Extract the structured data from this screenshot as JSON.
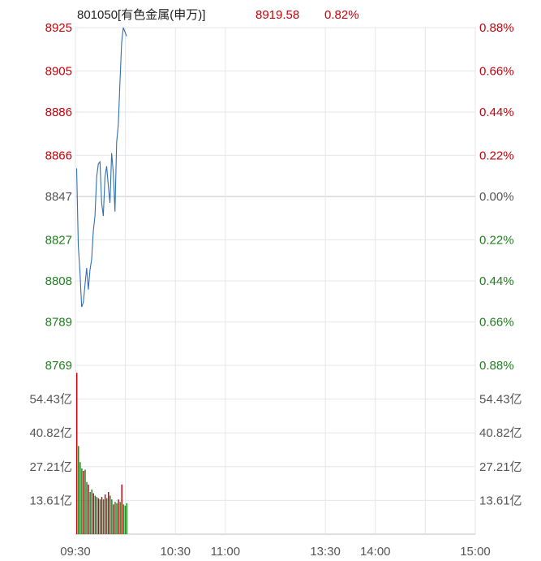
{
  "header": {
    "code_name": "801050[有色金属(申万)]",
    "price": "8919.58",
    "change_pct": "0.82%"
  },
  "colors": {
    "up": "#c8000a",
    "down": "#1e7f1e",
    "neutral": "#555555",
    "price_line": "#2f6fb0",
    "grid": "#e6e6e6",
    "baseline": "#cfcfcf"
  },
  "chart_data": {
    "type": "line",
    "base_price": 8847,
    "price_axis": {
      "min": 8769,
      "max": 8925,
      "left_ticks": [
        "8925",
        "8905",
        "8886",
        "8866",
        "8847",
        "8827",
        "8808",
        "8789",
        "8769"
      ],
      "right_ticks": [
        "0.88%",
        "0.66%",
        "0.44%",
        "0.22%",
        "0.00%",
        "0.22%",
        "0.44%",
        "0.66%",
        "0.88%"
      ],
      "tick_values": [
        8925,
        8905,
        8886,
        8866,
        8847,
        8827,
        8808,
        8789,
        8769
      ]
    },
    "volume_axis": {
      "unit": "亿",
      "max": 68.0,
      "left_ticks": [
        "54.43亿",
        "40.82亿",
        "27.21亿",
        "13.61亿"
      ],
      "right_ticks": [
        "54.43亿",
        "40.82亿",
        "27.21亿",
        "13.61亿"
      ],
      "tick_values": [
        54.43,
        40.82,
        27.21,
        13.61
      ]
    },
    "time_axis": {
      "total_minutes": 240,
      "labels": [
        {
          "text": "09:30",
          "minute": 0
        },
        {
          "text": "10:30",
          "minute": 60
        },
        {
          "text": "11:00",
          "minute": 90
        },
        {
          "text": "13:30",
          "minute": 150
        },
        {
          "text": "14:00",
          "minute": 180
        },
        {
          "text": "15:00",
          "minute": 240
        }
      ],
      "grid_minutes": [
        30,
        60,
        90,
        150,
        180,
        210
      ]
    },
    "series": [
      {
        "x": [
          0,
          1,
          2,
          3,
          4,
          5,
          6,
          7,
          8,
          9,
          10,
          11,
          12,
          13,
          14,
          15,
          16,
          17,
          18,
          19,
          20,
          21,
          22,
          23,
          24,
          25,
          26,
          27,
          28,
          29,
          30
        ],
        "y": [
          8860,
          8824,
          8812,
          8796,
          8798,
          8806,
          8814,
          8804,
          8813,
          8818,
          8831,
          8838,
          8856,
          8862,
          8863,
          8844,
          8838,
          8856,
          8861,
          8852,
          8844,
          8867,
          8858,
          8840,
          8872,
          8880,
          8900,
          8918,
          8925,
          8923,
          8921
        ]
      }
    ],
    "volume": [
      {
        "minute": 0,
        "value": 65.0,
        "dir": "up"
      },
      {
        "minute": 1,
        "value": 35.5,
        "dir": "down"
      },
      {
        "minute": 2,
        "value": 29.0,
        "dir": "down"
      },
      {
        "minute": 3,
        "value": 26.5,
        "dir": "down"
      },
      {
        "minute": 4,
        "value": 25.5,
        "dir": "up"
      },
      {
        "minute": 5,
        "value": 26.0,
        "dir": "down"
      },
      {
        "minute": 6,
        "value": 21.0,
        "dir": "down"
      },
      {
        "minute": 7,
        "value": 20.0,
        "dir": "up"
      },
      {
        "minute": 8,
        "value": 17.0,
        "dir": "down"
      },
      {
        "minute": 9,
        "value": 18.0,
        "dir": "down"
      },
      {
        "minute": 10,
        "value": 16.5,
        "dir": "up"
      },
      {
        "minute": 11,
        "value": 15.5,
        "dir": "down"
      },
      {
        "minute": 12,
        "value": 15.0,
        "dir": "down"
      },
      {
        "minute": 13,
        "value": 14.5,
        "dir": "up"
      },
      {
        "minute": 14,
        "value": 14.0,
        "dir": "down"
      },
      {
        "minute": 15,
        "value": 15.0,
        "dir": "up"
      },
      {
        "minute": 16,
        "value": 14.0,
        "dir": "down"
      },
      {
        "minute": 17,
        "value": 16.0,
        "dir": "up"
      },
      {
        "minute": 18,
        "value": 14.5,
        "dir": "down"
      },
      {
        "minute": 19,
        "value": 17.0,
        "dir": "up"
      },
      {
        "minute": 20,
        "value": 15.5,
        "dir": "down"
      },
      {
        "minute": 21,
        "value": 14.0,
        "dir": "down"
      },
      {
        "minute": 22,
        "value": 12.0,
        "dir": "up"
      },
      {
        "minute": 23,
        "value": 13.0,
        "dir": "down"
      },
      {
        "minute": 24,
        "value": 12.5,
        "dir": "down"
      },
      {
        "minute": 25,
        "value": 14.0,
        "dir": "up"
      },
      {
        "minute": 26,
        "value": 13.0,
        "dir": "down"
      },
      {
        "minute": 27,
        "value": 20.0,
        "dir": "up"
      },
      {
        "minute": 28,
        "value": 12.0,
        "dir": "down"
      },
      {
        "minute": 29,
        "value": 11.5,
        "dir": "down"
      },
      {
        "minute": 30,
        "value": 12.5,
        "dir": "down"
      }
    ],
    "grid": true
  }
}
